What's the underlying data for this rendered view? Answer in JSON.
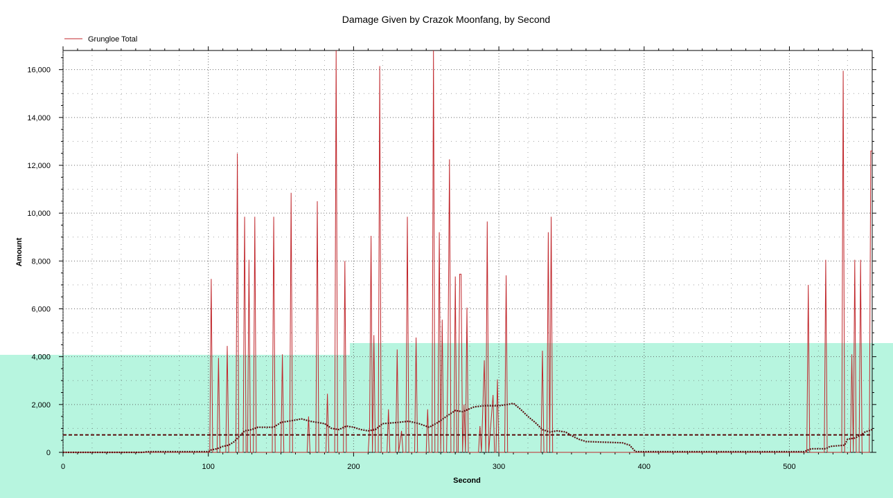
{
  "chart_data": {
    "type": "line",
    "title": "Damage Given by Crazok Moonfang, by Second",
    "xlabel": "Second",
    "ylabel": "Amount",
    "xlim": [
      0,
      557
    ],
    "ylim": [
      0,
      16800
    ],
    "x_ticks": [
      0,
      100,
      200,
      300,
      400,
      500
    ],
    "x_tick_labels": [
      "0",
      "100",
      "200",
      "300",
      "400",
      "500"
    ],
    "y_ticks": [
      0,
      2000,
      4000,
      6000,
      8000,
      10000,
      12000,
      14000,
      16000
    ],
    "y_tick_labels": [
      "0",
      "2,000",
      "4,000",
      "6,000",
      "8,000",
      "10,000",
      "12,000",
      "14,000",
      "16,000"
    ],
    "grid": true,
    "legend_position": "top-left",
    "series": [
      {
        "name": "Grungloe Total",
        "color": "#c0262b",
        "points": [
          [
            0,
            0
          ],
          [
            100,
            0
          ],
          [
            101,
            0
          ],
          [
            102,
            7250
          ],
          [
            103,
            0
          ],
          [
            106,
            0
          ],
          [
            107,
            3950
          ],
          [
            108,
            0
          ],
          [
            112,
            0
          ],
          [
            113,
            4450
          ],
          [
            114,
            0
          ],
          [
            119,
            0
          ],
          [
            120,
            12500
          ],
          [
            121,
            0
          ],
          [
            124,
            0
          ],
          [
            125,
            9850
          ],
          [
            126,
            0
          ],
          [
            127,
            0
          ],
          [
            128,
            8050
          ],
          [
            129,
            0
          ],
          [
            131,
            0
          ],
          [
            132,
            9850
          ],
          [
            133,
            0
          ],
          [
            144,
            0
          ],
          [
            145,
            9850
          ],
          [
            146,
            0
          ],
          [
            150,
            0
          ],
          [
            151,
            4100
          ],
          [
            152,
            0
          ],
          [
            156,
            0
          ],
          [
            157,
            10850
          ],
          [
            158,
            0
          ],
          [
            168,
            0
          ],
          [
            169,
            1500
          ],
          [
            170,
            0
          ],
          [
            174,
            0
          ],
          [
            175,
            10500
          ],
          [
            176,
            0
          ],
          [
            181,
            0
          ],
          [
            182,
            2450
          ],
          [
            183,
            0
          ],
          [
            187,
            0
          ],
          [
            188,
            16800
          ],
          [
            189,
            0
          ],
          [
            193,
            0
          ],
          [
            194,
            8000
          ],
          [
            195,
            0
          ],
          [
            210,
            0
          ],
          [
            211,
            1000
          ],
          [
            212,
            9050
          ],
          [
            213,
            0
          ],
          [
            214,
            4900
          ],
          [
            215,
            0
          ],
          [
            217,
            0
          ],
          [
            218,
            16150
          ],
          [
            219,
            0
          ],
          [
            223,
            0
          ],
          [
            224,
            1800
          ],
          [
            225,
            0
          ],
          [
            229,
            0
          ],
          [
            230,
            4300
          ],
          [
            231,
            0
          ],
          [
            233,
            900
          ],
          [
            234,
            0
          ],
          [
            236,
            0
          ],
          [
            237,
            9850
          ],
          [
            238,
            0
          ],
          [
            242,
            0
          ],
          [
            243,
            4800
          ],
          [
            244,
            0
          ],
          [
            250,
            0
          ],
          [
            251,
            1800
          ],
          [
            252,
            0
          ],
          [
            254,
            0
          ],
          [
            255,
            16800
          ],
          [
            256,
            0
          ],
          [
            258,
            0
          ],
          [
            259,
            9200
          ],
          [
            260,
            0
          ],
          [
            261,
            5550
          ],
          [
            262,
            0
          ],
          [
            264,
            0
          ],
          [
            265,
            4100
          ],
          [
            266,
            12250
          ],
          [
            267,
            0
          ],
          [
            269,
            0
          ],
          [
            270,
            7350
          ],
          [
            271,
            0
          ],
          [
            272,
            0
          ],
          [
            273,
            7450
          ],
          [
            274,
            7450
          ],
          [
            275,
            0
          ],
          [
            276,
            2000
          ],
          [
            277,
            0
          ],
          [
            278,
            6050
          ],
          [
            279,
            0
          ],
          [
            286,
            0
          ],
          [
            287,
            1100
          ],
          [
            288,
            0
          ],
          [
            290,
            3850
          ],
          [
            291,
            0
          ],
          [
            292,
            9650
          ],
          [
            293,
            0
          ],
          [
            296,
            2400
          ],
          [
            297,
            0
          ],
          [
            298,
            0
          ],
          [
            299,
            3050
          ],
          [
            300,
            0
          ],
          [
            304,
            0
          ],
          [
            305,
            7400
          ],
          [
            306,
            0
          ],
          [
            329,
            0
          ],
          [
            330,
            4250
          ],
          [
            331,
            0
          ],
          [
            333,
            0
          ],
          [
            334,
            9200
          ],
          [
            335,
            0
          ],
          [
            336,
            9850
          ],
          [
            337,
            0
          ],
          [
            512,
            0
          ],
          [
            513,
            7000
          ],
          [
            514,
            0
          ],
          [
            524,
            0
          ],
          [
            525,
            8050
          ],
          [
            526,
            0
          ],
          [
            536,
            0
          ],
          [
            537,
            15950
          ],
          [
            538,
            0
          ],
          [
            542,
            0
          ],
          [
            543,
            4100
          ],
          [
            544,
            0
          ],
          [
            545,
            8050
          ],
          [
            546,
            0
          ],
          [
            548,
            0
          ],
          [
            549,
            8050
          ],
          [
            550,
            0
          ],
          [
            555,
            0
          ],
          [
            556,
            12600
          ],
          [
            557,
            12600
          ]
        ]
      },
      {
        "name": "",
        "color": "#5a0e0e",
        "style": "dotted-step",
        "points": [
          [
            0,
            0
          ],
          [
            55,
            0
          ],
          [
            58,
            30
          ],
          [
            100,
            30
          ],
          [
            102,
            100
          ],
          [
            106,
            150
          ],
          [
            110,
            250
          ],
          [
            114,
            300
          ],
          [
            118,
            450
          ],
          [
            121,
            650
          ],
          [
            125,
            900
          ],
          [
            130,
            950
          ],
          [
            134,
            1050
          ],
          [
            145,
            1050
          ],
          [
            150,
            1250
          ],
          [
            155,
            1300
          ],
          [
            160,
            1350
          ],
          [
            164,
            1400
          ],
          [
            170,
            1300
          ],
          [
            180,
            1200
          ],
          [
            185,
            1000
          ],
          [
            190,
            950
          ],
          [
            195,
            1100
          ],
          [
            200,
            1050
          ],
          [
            205,
            950
          ],
          [
            210,
            900
          ],
          [
            215,
            950
          ],
          [
            220,
            1200
          ],
          [
            230,
            1250
          ],
          [
            238,
            1300
          ],
          [
            245,
            1200
          ],
          [
            252,
            1050
          ],
          [
            258,
            1250
          ],
          [
            265,
            1550
          ],
          [
            270,
            1750
          ],
          [
            275,
            1700
          ],
          [
            283,
            1900
          ],
          [
            290,
            1950
          ],
          [
            300,
            1950
          ],
          [
            306,
            2000
          ],
          [
            310,
            2050
          ],
          [
            315,
            1800
          ],
          [
            320,
            1500
          ],
          [
            325,
            1250
          ],
          [
            330,
            950
          ],
          [
            335,
            850
          ],
          [
            340,
            900
          ],
          [
            346,
            850
          ],
          [
            350,
            700
          ],
          [
            355,
            550
          ],
          [
            360,
            450
          ],
          [
            385,
            400
          ],
          [
            390,
            300
          ],
          [
            393,
            100
          ],
          [
            394,
            30
          ],
          [
            510,
            30
          ],
          [
            515,
            150
          ],
          [
            520,
            150
          ],
          [
            525,
            150
          ],
          [
            528,
            250
          ],
          [
            538,
            300
          ],
          [
            540,
            550
          ],
          [
            545,
            600
          ],
          [
            550,
            750
          ],
          [
            552,
            850
          ],
          [
            557,
            950
          ]
        ]
      },
      {
        "name": "",
        "color": "#5a0e0e",
        "style": "dashed-average",
        "points": [
          [
            0,
            730
          ],
          [
            557,
            730
          ]
        ]
      }
    ]
  },
  "background_band": {
    "color": "#b7f5df"
  }
}
